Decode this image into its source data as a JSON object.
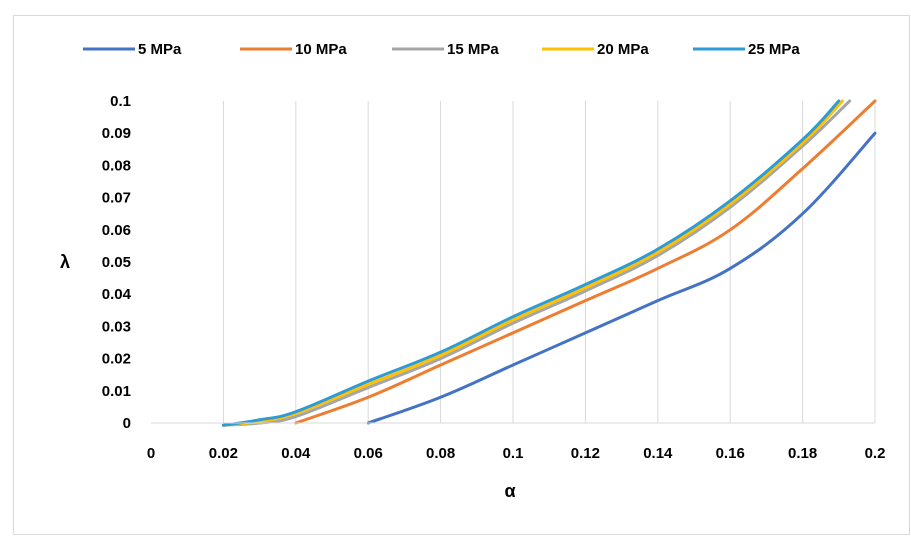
{
  "chart_data": {
    "type": "line",
    "xlabel": "α",
    "ylabel": "λ",
    "xlim": [
      0,
      0.2
    ],
    "ylim": [
      0,
      0.1
    ],
    "x_ticks": [
      "0",
      "0.02",
      "0.04",
      "0.06",
      "0.08",
      "0.1",
      "0.12",
      "0.14",
      "0.16",
      "0.18",
      "0.2"
    ],
    "y_ticks": [
      "0",
      "0.01",
      "0.02",
      "0.03",
      "0.04",
      "0.05",
      "0.06",
      "0.07",
      "0.08",
      "0.09",
      "0.1"
    ],
    "grid": "vertical",
    "legend_position": "top",
    "series": [
      {
        "name": "5 MPa",
        "color": "#4472C4",
        "points": [
          [
            0.06,
            0
          ],
          [
            0.08,
            0.008
          ],
          [
            0.1,
            0.018
          ],
          [
            0.12,
            0.028
          ],
          [
            0.14,
            0.038
          ],
          [
            0.16,
            0.048
          ],
          [
            0.18,
            0.065
          ],
          [
            0.2,
            0.09
          ]
        ]
      },
      {
        "name": "10 MPa",
        "color": "#ED7D31",
        "points": [
          [
            0.04,
            0
          ],
          [
            0.06,
            0.008
          ],
          [
            0.08,
            0.018
          ],
          [
            0.1,
            0.028
          ],
          [
            0.12,
            0.038
          ],
          [
            0.14,
            0.048
          ],
          [
            0.16,
            0.06
          ],
          [
            0.18,
            0.079
          ],
          [
            0.2,
            0.1
          ]
        ]
      },
      {
        "name": "15 MPa",
        "color": "#A5A5A5",
        "points": [
          [
            0.02,
            -0.0007
          ],
          [
            0.03,
            0
          ],
          [
            0.04,
            0.002
          ],
          [
            0.06,
            0.011
          ],
          [
            0.08,
            0.02
          ],
          [
            0.1,
            0.031
          ],
          [
            0.12,
            0.041
          ],
          [
            0.14,
            0.052
          ],
          [
            0.16,
            0.067
          ],
          [
            0.18,
            0.086
          ],
          [
            0.193,
            0.1
          ]
        ]
      },
      {
        "name": "20 MPa",
        "color": "#FFC000",
        "points": [
          [
            0.02,
            -0.0007
          ],
          [
            0.03,
            0.0005
          ],
          [
            0.04,
            0.003
          ],
          [
            0.06,
            0.012
          ],
          [
            0.08,
            0.021
          ],
          [
            0.1,
            0.032
          ],
          [
            0.12,
            0.042
          ],
          [
            0.14,
            0.053
          ],
          [
            0.16,
            0.068
          ],
          [
            0.18,
            0.087
          ],
          [
            0.191,
            0.1
          ]
        ]
      },
      {
        "name": "25 MPa",
        "color": "#2E9BD6",
        "points": [
          [
            0.02,
            -0.0007
          ],
          [
            0.03,
            0.001
          ],
          [
            0.04,
            0.0035
          ],
          [
            0.06,
            0.013
          ],
          [
            0.08,
            0.022
          ],
          [
            0.1,
            0.033
          ],
          [
            0.12,
            0.043
          ],
          [
            0.14,
            0.054
          ],
          [
            0.16,
            0.069
          ],
          [
            0.18,
            0.088
          ],
          [
            0.19,
            0.1
          ]
        ]
      }
    ]
  }
}
